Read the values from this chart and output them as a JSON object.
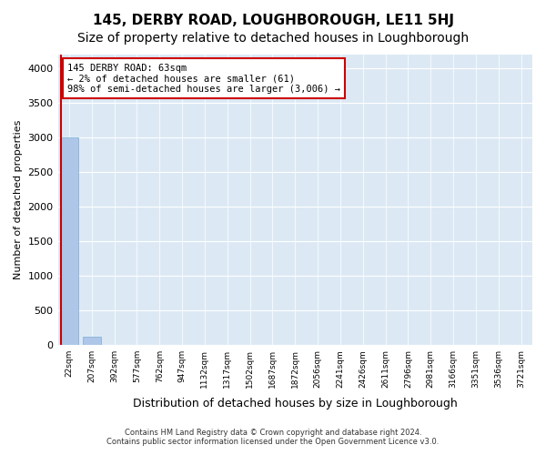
{
  "title": "145, DERBY ROAD, LOUGHBOROUGH, LE11 5HJ",
  "subtitle": "Size of property relative to detached houses in Loughborough",
  "xlabel": "Distribution of detached houses by size in Loughborough",
  "ylabel": "Number of detached properties",
  "bin_labels": [
    "22sqm",
    "207sqm",
    "392sqm",
    "577sqm",
    "762sqm",
    "947sqm",
    "1132sqm",
    "1317sqm",
    "1502sqm",
    "1687sqm",
    "1872sqm",
    "2056sqm",
    "2241sqm",
    "2426sqm",
    "2611sqm",
    "2796sqm",
    "2981sqm",
    "3166sqm",
    "3351sqm",
    "3536sqm",
    "3721sqm"
  ],
  "bar_values": [
    3000,
    120,
    0,
    0,
    0,
    0,
    0,
    0,
    0,
    0,
    0,
    0,
    0,
    0,
    0,
    0,
    0,
    0,
    0,
    0,
    0
  ],
  "bar_color": "#aec6e8",
  "bar_edge_color": "#7aadd4",
  "annotation_title": "145 DERBY ROAD: 63sqm",
  "annotation_line1": "← 2% of detached houses are smaller (61)",
  "annotation_line2": "98% of semi-detached houses are larger (3,006) →",
  "annotation_box_color": "#ffffff",
  "annotation_box_edgecolor": "#cc0000",
  "ylim": [
    0,
    4200
  ],
  "yticks": [
    0,
    500,
    1000,
    1500,
    2000,
    2500,
    3000,
    3500,
    4000
  ],
  "footer1": "Contains HM Land Registry data © Crown copyright and database right 2024.",
  "footer2": "Contains public sector information licensed under the Open Government Licence v3.0.",
  "plot_bg_color": "#dce9f5",
  "fig_bg_color": "#ffffff",
  "title_fontsize": 11,
  "subtitle_fontsize": 10,
  "red_line_color": "#cc0000"
}
